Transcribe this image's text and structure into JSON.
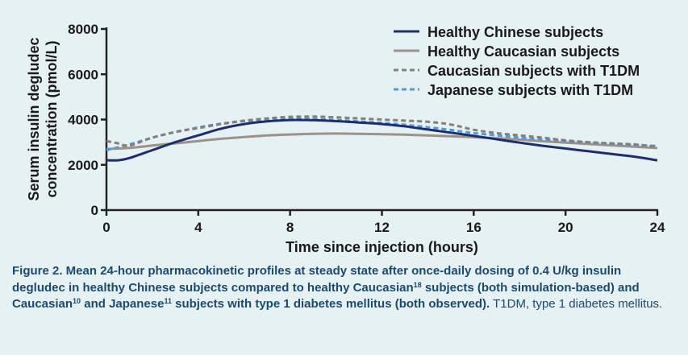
{
  "chart_data": {
    "type": "line",
    "xlabel": "Time since injection (hours)",
    "ylabel": "Serum insulin degludec concentration (pmol/L)",
    "ylabel_lines": [
      "Serum  insulin degludec",
      "concentration (pmol/L)"
    ],
    "xlim": [
      0,
      24
    ],
    "ylim": [
      0,
      8000
    ],
    "xticks": [
      0,
      4,
      8,
      12,
      16,
      20,
      24
    ],
    "yticks": [
      0,
      2000,
      4000,
      6000,
      8000
    ],
    "grid": false,
    "legend_position": "top-right",
    "series": [
      {
        "name": "Healthy Chinese subjects",
        "color": "#1f2d6e",
        "style": "solid",
        "x": [
          0,
          0.5,
          1,
          2,
          3,
          4,
          5,
          6,
          7,
          8,
          9,
          10,
          11,
          12,
          13,
          14,
          15,
          16,
          17,
          18,
          19,
          20,
          21,
          22,
          23,
          24
        ],
        "y": [
          2200,
          2200,
          2300,
          2650,
          3000,
          3300,
          3600,
          3800,
          3920,
          3980,
          3970,
          3930,
          3870,
          3800,
          3700,
          3560,
          3420,
          3280,
          3130,
          2980,
          2840,
          2720,
          2600,
          2480,
          2360,
          2200
        ]
      },
      {
        "name": "Healthy Caucasian subjects",
        "color": "#9c9288",
        "style": "solid",
        "x": [
          0,
          1,
          2,
          3,
          4,
          5,
          6,
          7,
          8,
          9,
          10,
          11,
          12,
          13,
          14,
          15,
          16,
          17,
          18,
          19,
          20,
          21,
          22,
          23,
          24
        ],
        "y": [
          2700,
          2750,
          2850,
          2950,
          3050,
          3150,
          3230,
          3300,
          3340,
          3370,
          3380,
          3370,
          3350,
          3330,
          3300,
          3260,
          3220,
          3170,
          3110,
          3040,
          2980,
          2920,
          2860,
          2800,
          2740
        ]
      },
      {
        "name": "Caucasian subjects with T1DM",
        "color": "#857f7a",
        "style": "dashed",
        "x": [
          0,
          0.5,
          1,
          2,
          3,
          4,
          5,
          6,
          7,
          8,
          9,
          10,
          11,
          12,
          13,
          14,
          15,
          16,
          17,
          18,
          19,
          20,
          21,
          22,
          23,
          24
        ],
        "y": [
          3050,
          2950,
          2850,
          3200,
          3450,
          3620,
          3800,
          3950,
          4050,
          4120,
          4130,
          4100,
          4050,
          4000,
          3950,
          3900,
          3780,
          3550,
          3400,
          3300,
          3200,
          3080,
          3000,
          2950,
          2900,
          2800
        ]
      },
      {
        "name": "Japanese subjects with T1DM",
        "color": "#4e9be0",
        "style": "dashed",
        "x": [
          0,
          1,
          2,
          3,
          4,
          5,
          6,
          7,
          8,
          9,
          10,
          11,
          12,
          13,
          14,
          15,
          16,
          17,
          18,
          19,
          20,
          21,
          22,
          23,
          24
        ],
        "y": [
          2650,
          2900,
          3200,
          3450,
          3650,
          3820,
          3930,
          4000,
          4030,
          4020,
          3980,
          3920,
          3850,
          3770,
          3660,
          3540,
          3400,
          3300,
          3200,
          3120,
          3050,
          2990,
          2930,
          2880,
          2830
        ]
      }
    ]
  },
  "caption": {
    "prefix": "Figure 2. Mean 24-hour pharmacokinetic profiles at steady state after once-daily dosing of 0.4 U/kg insulin degludec in healthy Chinese subjects compared to healthy Caucasian",
    "ref1": "18",
    "mid1": " subjects (both simulation-based) and Caucasian",
    "ref2": "10",
    "mid2": " and Japanese",
    "ref3": "11",
    "mid3": " subjects with type 1 diabetes mellitus (both observed).",
    "suffix": " T1DM, type 1 diabetes mellitus."
  }
}
